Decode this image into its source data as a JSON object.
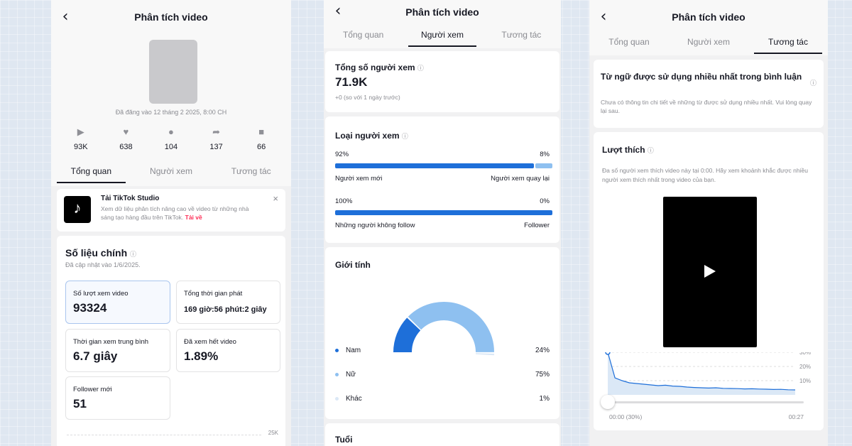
{
  "screen_title": "Phân tích video",
  "tabs": [
    "Tổng quan",
    "Người xem",
    "Tương tác"
  ],
  "overview": {
    "posted": "Đã đăng vào 12 tháng 2 2025, 8:00 CH",
    "stats": [
      {
        "icon": "play-icon",
        "value": "93K"
      },
      {
        "icon": "heart-icon",
        "value": "638"
      },
      {
        "icon": "comment-icon",
        "value": "104"
      },
      {
        "icon": "share-icon",
        "value": "137"
      },
      {
        "icon": "bookmark-icon",
        "value": "66"
      }
    ],
    "studio_title": "Tải TikTok Studio",
    "studio_desc": "Xem dữ liệu phân tích nâng cao về video từ những nhà sáng tạo hàng đầu trên TikTok.",
    "studio_link": "Tải về",
    "metrics_title": "Số liệu chính",
    "metrics_updated": "Đã cập nhật vào 1/6/2025.",
    "metrics": [
      {
        "label": "Số lượt xem video",
        "value": "93324"
      },
      {
        "label": "Tổng thời gian phát",
        "value": "169 giờ:56 phút:2 giây"
      },
      {
        "label": "Thời gian xem trung bình",
        "value": "6.7 giây"
      },
      {
        "label": "Đã xem hết video",
        "value": "1.89%"
      },
      {
        "label": "Follower mới",
        "value": "51"
      }
    ],
    "axis_label": "25K"
  },
  "viewers": {
    "total_label": "Tổng số người xem",
    "total_value": "71.9K",
    "total_change": "+0  (so với 1 ngày trước)",
    "types_title": "Loại người xem",
    "new_pct": "92%",
    "returning_pct": "8%",
    "new_label": "Người xem mới",
    "returning_label": "Người xem quay lại",
    "new_fraction": 0.92,
    "nonfollow_pct": "100%",
    "follower_pct": "0%",
    "nonfollow_label": "Những người không follow",
    "follower_label": "Follower",
    "nonfollow_fraction": 1.0,
    "gender_title": "Giới tính",
    "gender": [
      {
        "label": "Nam",
        "pct": "24%",
        "color": "#1e6fd9",
        "value": 24
      },
      {
        "label": "Nữ",
        "pct": "75%",
        "color": "#8ec0f0",
        "value": 75
      },
      {
        "label": "Khác",
        "pct": "1%",
        "color": "#dbe8f6",
        "value": 1
      }
    ],
    "age_title": "Tuổi"
  },
  "engagement": {
    "words_title": "Từ ngữ được sử dụng nhiều nhất trong bình luận",
    "words_desc": "Chưa có thông tin chi tiết về những từ được sử dụng nhiều nhất. Vui lòng quay lại sau.",
    "likes_title": "Lượt thích",
    "likes_desc": "Đa số người xem thích video này tại 0:00. Hãy xem khoảnh khắc được nhiều người xem thích nhất trong video của bạn.",
    "chart_ticks": [
      "30%",
      "20%",
      "10%"
    ],
    "chart_values": [
      30,
      12,
      10,
      8.5,
      8,
      7.5,
      7,
      6.5,
      6.8,
      6.2,
      6,
      5.5,
      5.2,
      5,
      4.8,
      5,
      4.6,
      4.5,
      4.4,
      4.2,
      4.3,
      4.1,
      4,
      3.8,
      3.9,
      3.6,
      3.5
    ],
    "time_start": "00:00 (30%)",
    "time_end": "00:27"
  }
}
